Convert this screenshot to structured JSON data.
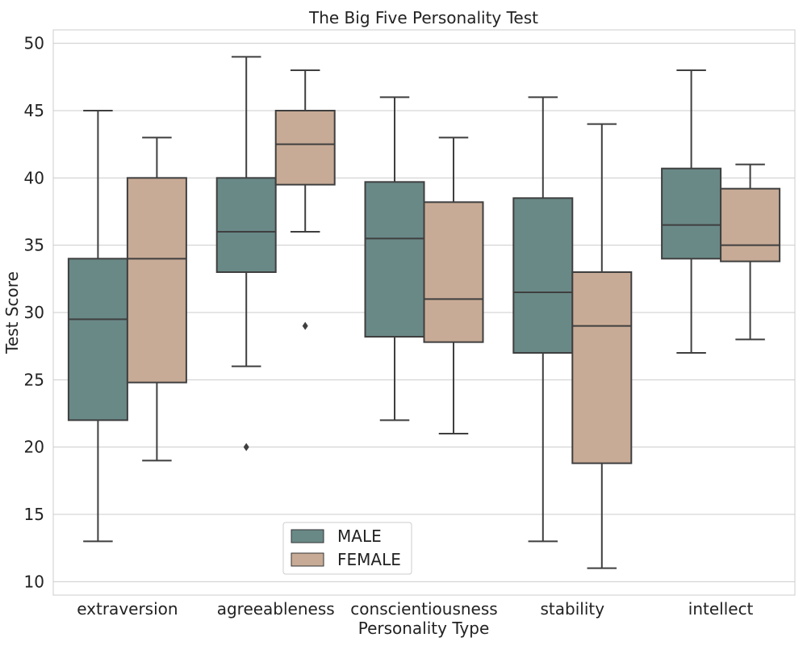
{
  "chart_data": {
    "type": "box",
    "title": "The Big Five Personality Test",
    "xlabel": "Personality Type",
    "ylabel": "Test Score",
    "ylim": [
      9,
      51
    ],
    "yticks": [
      10,
      15,
      20,
      25,
      30,
      35,
      40,
      45,
      50
    ],
    "grid": true,
    "legend_position": "lower-center",
    "categories": [
      "extraversion",
      "agreeableness",
      "conscientiousness",
      "stability",
      "intellect"
    ],
    "series": [
      {
        "name": "MALE",
        "color": "#698987",
        "boxes": [
          {
            "whisker_low": 13,
            "q1": 22,
            "median": 29.5,
            "q3": 34,
            "whisker_high": 45,
            "outliers": []
          },
          {
            "whisker_low": 26,
            "q1": 33,
            "median": 36,
            "q3": 40,
            "whisker_high": 49,
            "outliers": [
              20
            ]
          },
          {
            "whisker_low": 22,
            "q1": 28.2,
            "median": 35.5,
            "q3": 39.7,
            "whisker_high": 46,
            "outliers": []
          },
          {
            "whisker_low": 13,
            "q1": 27,
            "median": 31.5,
            "q3": 38.5,
            "whisker_high": 46,
            "outliers": []
          },
          {
            "whisker_low": 27,
            "q1": 34,
            "median": 36.5,
            "q3": 40.7,
            "whisker_high": 48,
            "outliers": []
          }
        ]
      },
      {
        "name": "FEMALE",
        "color": "#c8ab96",
        "boxes": [
          {
            "whisker_low": 19,
            "q1": 24.8,
            "median": 34,
            "q3": 40,
            "whisker_high": 43,
            "outliers": []
          },
          {
            "whisker_low": 36,
            "q1": 39.5,
            "median": 42.5,
            "q3": 45,
            "whisker_high": 48,
            "outliers": [
              29
            ]
          },
          {
            "whisker_low": 21,
            "q1": 27.8,
            "median": 31,
            "q3": 38.2,
            "whisker_high": 43,
            "outliers": []
          },
          {
            "whisker_low": 11,
            "q1": 18.8,
            "median": 29,
            "q3": 33,
            "whisker_high": 44,
            "outliers": []
          },
          {
            "whisker_low": 28,
            "q1": 33.8,
            "median": 35,
            "q3": 39.2,
            "whisker_high": 41,
            "outliers": []
          }
        ]
      }
    ],
    "legend": [
      "MALE",
      "FEMALE"
    ]
  }
}
